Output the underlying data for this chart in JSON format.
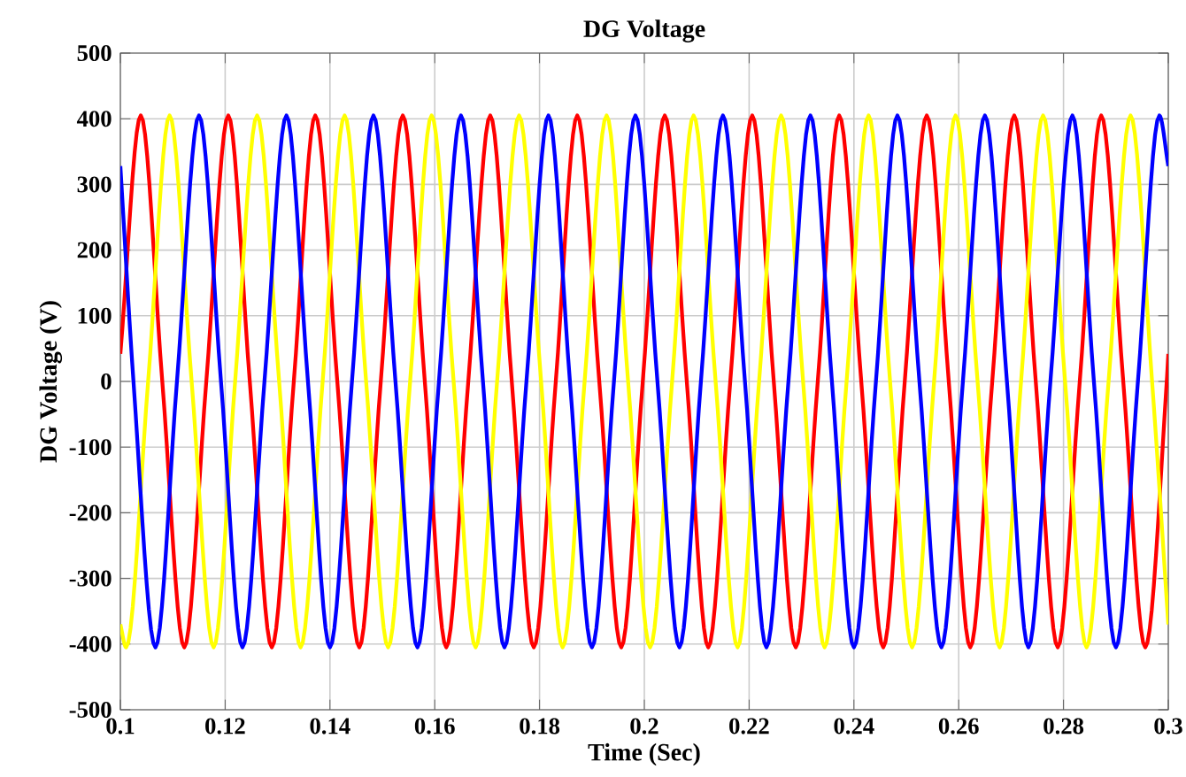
{
  "chart_data": {
    "type": "line",
    "title": "DG Voltage",
    "xlabel": "Time (Sec)",
    "ylabel": "DG Voltage (V)",
    "xlim": [
      0.1,
      0.3
    ],
    "ylim": [
      -500,
      500
    ],
    "xticks": [
      0.1,
      0.12,
      0.14,
      0.16,
      0.18,
      0.2,
      0.22,
      0.24,
      0.26,
      0.28,
      0.3
    ],
    "yticks": [
      -500,
      -400,
      -300,
      -200,
      -100,
      0,
      100,
      200,
      300,
      400,
      500
    ],
    "grid": true,
    "series": [
      {
        "color": "#ff0000",
        "x": [
          0.1,
          0.1039,
          0.108,
          0.1122,
          0.1164,
          0.1206,
          0.1247,
          0.1289,
          0.1331,
          0.1372,
          0.1414,
          0.1456,
          0.1497,
          0.1539,
          0.1581,
          0.1622,
          0.1664,
          0.1706,
          0.1747,
          0.1789,
          0.1831,
          0.1872,
          0.1914,
          0.1956,
          0.1997,
          0.2039,
          0.2081,
          0.2122,
          0.2164,
          0.2206,
          0.2247,
          0.2289,
          0.2331,
          0.2372,
          0.2414,
          0.2456,
          0.2497,
          0.2539,
          0.2581,
          0.2622,
          0.2664,
          0.2706,
          0.2747,
          0.2789,
          0.2831,
          0.2872,
          0.2914,
          0.2956,
          0.2997,
          0.3
        ],
        "values": [
          42,
          405,
          0,
          -405,
          0,
          405,
          0,
          -405,
          0,
          405,
          0,
          -405,
          0,
          405,
          0,
          -405,
          0,
          405,
          0,
          -405,
          0,
          405,
          0,
          -405,
          0,
          405,
          0,
          -405,
          0,
          405,
          0,
          -405,
          0,
          405,
          0,
          -405,
          0,
          405,
          0,
          -405,
          0,
          405,
          0,
          -405,
          0,
          405,
          0,
          -405,
          0,
          42
        ]
      },
      {
        "color": "#ffff00",
        "x": [
          0.1,
          0.1011,
          0.1053,
          0.1094,
          0.1136,
          0.1178,
          0.1219,
          0.1261,
          0.1303,
          0.1344,
          0.1386,
          0.1428,
          0.1469,
          0.1511,
          0.1553,
          0.1594,
          0.1636,
          0.1678,
          0.1719,
          0.1761,
          0.1803,
          0.1844,
          0.1886,
          0.1928,
          0.1969,
          0.2011,
          0.2053,
          0.2094,
          0.2136,
          0.2178,
          0.2219,
          0.2261,
          0.2303,
          0.2344,
          0.2386,
          0.2428,
          0.2469,
          0.2511,
          0.2553,
          0.2594,
          0.2636,
          0.2678,
          0.2719,
          0.2761,
          0.2803,
          0.2844,
          0.2886,
          0.2928,
          0.2969,
          0.3
        ],
        "values": [
          -370,
          -405,
          0,
          405,
          0,
          -405,
          0,
          405,
          0,
          -405,
          0,
          405,
          0,
          -405,
          0,
          405,
          0,
          -405,
          0,
          405,
          0,
          -405,
          0,
          405,
          0,
          -405,
          0,
          405,
          0,
          -405,
          0,
          405,
          0,
          -405,
          0,
          405,
          0,
          -405,
          0,
          405,
          0,
          -405,
          0,
          405,
          0,
          -405,
          0,
          405,
          0,
          -370
        ]
      },
      {
        "color": "#0000ff",
        "x": [
          0.1,
          0.1025,
          0.1067,
          0.1108,
          0.115,
          0.1192,
          0.1233,
          0.1275,
          0.1317,
          0.1358,
          0.14,
          0.1442,
          0.1483,
          0.1525,
          0.1567,
          0.1608,
          0.165,
          0.1692,
          0.1733,
          0.1775,
          0.1817,
          0.1858,
          0.19,
          0.1942,
          0.1983,
          0.2025,
          0.2067,
          0.2108,
          0.215,
          0.2192,
          0.2233,
          0.2275,
          0.2317,
          0.2358,
          0.24,
          0.2442,
          0.2483,
          0.2525,
          0.2567,
          0.2608,
          0.265,
          0.2692,
          0.2733,
          0.2775,
          0.2817,
          0.2858,
          0.29,
          0.2942,
          0.2983,
          0.3
        ],
        "values": [
          328,
          0,
          -405,
          0,
          405,
          0,
          -405,
          0,
          405,
          0,
          -405,
          0,
          405,
          0,
          -405,
          0,
          405,
          0,
          -405,
          0,
          405,
          0,
          -405,
          0,
          405,
          0,
          -405,
          0,
          405,
          0,
          -405,
          0,
          405,
          0,
          -405,
          0,
          405,
          0,
          -405,
          0,
          405,
          0,
          -405,
          0,
          405,
          0,
          -405,
          0,
          405,
          328
        ]
      }
    ]
  }
}
